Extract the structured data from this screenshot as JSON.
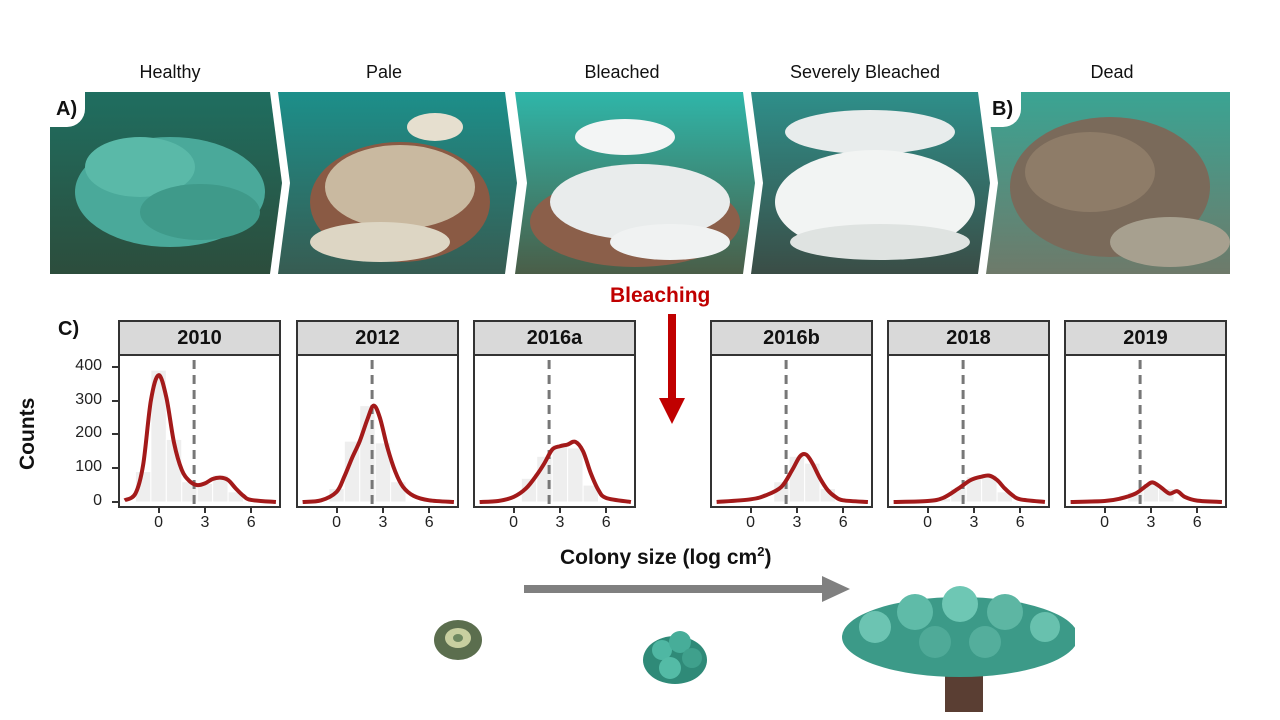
{
  "stages": [
    "Healthy",
    "Pale",
    "Bleached",
    "Severely Bleached",
    "Dead"
  ],
  "panel_tags": {
    "a": "A)",
    "b": "B)",
    "c": "C)"
  },
  "bleaching_label": "Bleaching",
  "colors": {
    "density_line": "#a31a1a",
    "bars": "#eeeeee",
    "bleach_arrow": "#c00000",
    "size_arrow": "#808080",
    "median_line": "#777777",
    "strip_bg": "#d9d9d9"
  },
  "chart_data": {
    "type": "bar",
    "facets": [
      "2010",
      "2012",
      "2016a",
      "2016b",
      "2018",
      "2019"
    ],
    "ylabel": "Counts",
    "xlabel": "Colony size (log cm",
    "xlabel_sup": "2",
    "xlabel_end": ")",
    "x_ticks": [
      0,
      3,
      6
    ],
    "y_ticks": [
      0,
      100,
      200,
      300,
      400
    ],
    "xlim": [
      -2.5,
      7.8
    ],
    "ylim": [
      0,
      420
    ],
    "reference_line_x": 2.3,
    "bin_centers": [
      -1,
      0,
      1,
      2,
      3,
      4,
      5,
      6
    ],
    "series": [
      {
        "name": "2010",
        "bars": [
          90,
          390,
          185,
          60,
          55,
          80,
          30,
          0
        ],
        "curve": [
          [
            -2.2,
            5
          ],
          [
            -1.5,
            25
          ],
          [
            -1,
            110
          ],
          [
            -0.5,
            300
          ],
          [
            0,
            375
          ],
          [
            0.5,
            310
          ],
          [
            1,
            175
          ],
          [
            1.5,
            95
          ],
          [
            2,
            62
          ],
          [
            2.5,
            50
          ],
          [
            3,
            55
          ],
          [
            3.5,
            68
          ],
          [
            4,
            72
          ],
          [
            4.5,
            65
          ],
          [
            5,
            40
          ],
          [
            5.5,
            18
          ],
          [
            6,
            6
          ],
          [
            7.6,
            0
          ]
        ]
      },
      {
        "name": "2012",
        "bars": [
          0,
          40,
          180,
          285,
          175,
          60,
          0,
          0
        ],
        "curve": [
          [
            -2.2,
            0
          ],
          [
            -1,
            5
          ],
          [
            0,
            30
          ],
          [
            0.5,
            75
          ],
          [
            1,
            130
          ],
          [
            1.5,
            180
          ],
          [
            2,
            245
          ],
          [
            2.4,
            285
          ],
          [
            2.8,
            250
          ],
          [
            3.3,
            160
          ],
          [
            3.8,
            90
          ],
          [
            4.3,
            45
          ],
          [
            5,
            18
          ],
          [
            6,
            5
          ],
          [
            7.6,
            0
          ]
        ]
      },
      {
        "name": "2016a",
        "bars": [
          0,
          0,
          70,
          135,
          170,
          160,
          50,
          0
        ],
        "curve": [
          [
            -2.2,
            0
          ],
          [
            -1,
            3
          ],
          [
            0,
            15
          ],
          [
            0.8,
            40
          ],
          [
            1.5,
            80
          ],
          [
            2,
            115
          ],
          [
            2.5,
            155
          ],
          [
            3,
            165
          ],
          [
            3.5,
            170
          ],
          [
            4,
            178
          ],
          [
            4.5,
            150
          ],
          [
            5,
            85
          ],
          [
            5.5,
            35
          ],
          [
            6,
            12
          ],
          [
            7.6,
            0
          ]
        ]
      },
      {
        "name": "2016b",
        "bars": [
          0,
          0,
          0,
          60,
          135,
          115,
          40,
          0
        ],
        "curve": [
          [
            -2.2,
            0
          ],
          [
            0,
            8
          ],
          [
            1,
            20
          ],
          [
            2,
            45
          ],
          [
            2.7,
            95
          ],
          [
            3.2,
            135
          ],
          [
            3.6,
            140
          ],
          [
            4,
            115
          ],
          [
            4.5,
            70
          ],
          [
            5,
            35
          ],
          [
            5.5,
            15
          ],
          [
            6,
            5
          ],
          [
            7.6,
            0
          ]
        ]
      },
      {
        "name": "2018",
        "bars": [
          0,
          0,
          10,
          40,
          75,
          80,
          30,
          0
        ],
        "curve": [
          [
            -2.2,
            0
          ],
          [
            0,
            3
          ],
          [
            1,
            12
          ],
          [
            2,
            40
          ],
          [
            2.8,
            65
          ],
          [
            3.5,
            75
          ],
          [
            4,
            78
          ],
          [
            4.5,
            65
          ],
          [
            5,
            40
          ],
          [
            5.5,
            20
          ],
          [
            6,
            8
          ],
          [
            7.6,
            0
          ]
        ]
      },
      {
        "name": "2019",
        "bars": [
          0,
          0,
          0,
          30,
          55,
          40,
          0,
          0
        ],
        "curve": [
          [
            -2.2,
            0
          ],
          [
            0,
            3
          ],
          [
            1,
            10
          ],
          [
            2,
            25
          ],
          [
            2.7,
            48
          ],
          [
            3.1,
            58
          ],
          [
            3.6,
            45
          ],
          [
            4.2,
            25
          ],
          [
            4.7,
            32
          ],
          [
            5.2,
            15
          ],
          [
            6,
            4
          ],
          [
            7.6,
            0
          ]
        ]
      }
    ]
  }
}
